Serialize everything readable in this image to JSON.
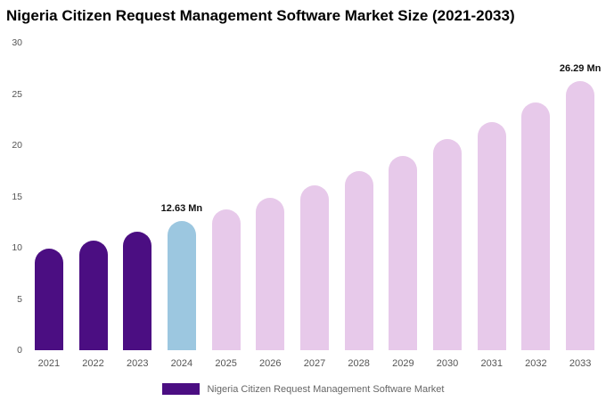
{
  "title": "Nigeria Citizen Request Management Software Market Size (2021-2033)",
  "legend": {
    "label": "Nigeria Citizen Request Management Software Market",
    "swatch_color": "#4B0E82"
  },
  "colors": {
    "historical_bar": "#4B0E82",
    "current_year_bar": "#9CC7E0",
    "forecast_bar": "#E7C9EA",
    "axis_text": "#555555",
    "title_text": "#000000"
  },
  "chart_data": {
    "type": "bar",
    "title": "Nigeria Citizen Request Management Software Market Size (2021-2033)",
    "xlabel": "",
    "ylabel": "",
    "unit": "Mn",
    "ylim": [
      0,
      30
    ],
    "yticks": [
      0,
      5,
      10,
      15,
      20,
      25,
      30
    ],
    "grid": false,
    "legend_position": "bottom",
    "categories": [
      "2021",
      "2022",
      "2023",
      "2024",
      "2025",
      "2026",
      "2027",
      "2028",
      "2029",
      "2030",
      "2031",
      "2032",
      "2033"
    ],
    "values": [
      9.9,
      10.7,
      11.6,
      12.63,
      13.7,
      14.9,
      16.1,
      17.5,
      19.0,
      20.6,
      22.3,
      24.2,
      26.29
    ],
    "bar_colors": [
      "#4B0E82",
      "#4B0E82",
      "#4B0E82",
      "#9CC7E0",
      "#E7C9EA",
      "#E7C9EA",
      "#E7C9EA",
      "#E7C9EA",
      "#E7C9EA",
      "#E7C9EA",
      "#E7C9EA",
      "#E7C9EA",
      "#E7C9EA"
    ],
    "annotations": [
      {
        "index": 3,
        "text": "12.63 Mn"
      },
      {
        "index": 12,
        "text": "26.29 Mn"
      }
    ]
  }
}
